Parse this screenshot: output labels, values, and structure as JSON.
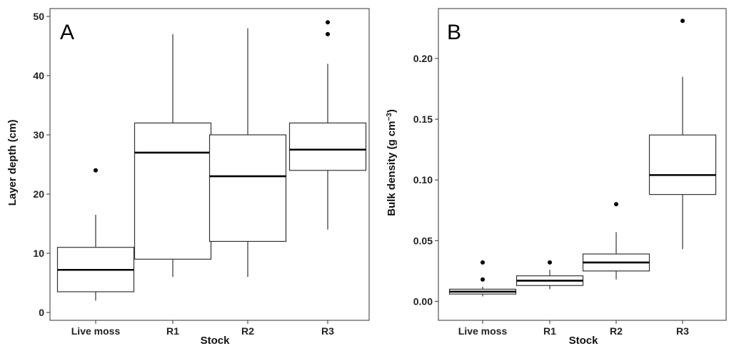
{
  "chart_data": [
    {
      "type": "boxplot",
      "panel_label": "A",
      "xlabel": "Stock",
      "ylabel": "Layer depth (cm)",
      "categories": [
        "Live moss",
        "R1",
        "R2",
        "R3"
      ],
      "ylim": [
        0,
        50
      ],
      "yticks": [
        0,
        10,
        20,
        30,
        40,
        50
      ],
      "boxes": [
        {
          "min": 2,
          "q1": 3.5,
          "median": 7.2,
          "q3": 11,
          "max": 16.5,
          "outliers": [
            24
          ]
        },
        {
          "min": 6,
          "q1": 9,
          "median": 27,
          "q3": 32,
          "max": 47,
          "outliers": []
        },
        {
          "min": 6,
          "q1": 12,
          "median": 23,
          "q3": 30,
          "max": 48,
          "outliers": []
        },
        {
          "min": 14,
          "q1": 24,
          "median": 27.5,
          "q3": 32,
          "max": 42,
          "outliers": [
            47,
            49
          ]
        }
      ]
    },
    {
      "type": "boxplot",
      "panel_label": "B",
      "xlabel": "Stock",
      "ylabel": "Bulk density (g cm",
      "ylabel_sup": "−3",
      "ylabel_end": ")",
      "categories": [
        "Live moss",
        "R1",
        "R2",
        "R3"
      ],
      "ylim": [
        -0.008,
        0.237
      ],
      "yticks": [
        0.0,
        0.05,
        0.1,
        0.15,
        0.2
      ],
      "ytick_labels": [
        "0.00",
        "0.05",
        "0.10",
        "0.15",
        "0.20"
      ],
      "boxes": [
        {
          "min": 0.004,
          "q1": 0.006,
          "median": 0.008,
          "q3": 0.01,
          "max": 0.012,
          "outliers": [
            0.018,
            0.032
          ]
        },
        {
          "min": 0.01,
          "q1": 0.013,
          "median": 0.017,
          "q3": 0.021,
          "max": 0.026,
          "outliers": [
            0.032
          ]
        },
        {
          "min": 0.018,
          "q1": 0.025,
          "median": 0.032,
          "q3": 0.039,
          "max": 0.057,
          "outliers": [
            0.08
          ]
        },
        {
          "min": 0.043,
          "q1": 0.088,
          "median": 0.104,
          "q3": 0.137,
          "max": 0.185,
          "outliers": [
            0.231
          ]
        }
      ]
    }
  ]
}
